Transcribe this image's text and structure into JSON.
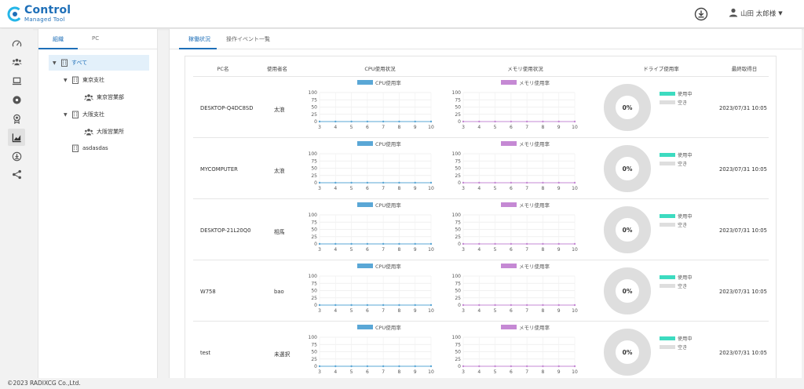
{
  "app": {
    "title": "Control",
    "subtitle": "Managed Tool",
    "user_name": "山田 太郎様"
  },
  "sidebar": {
    "icons": [
      "dashboard-icon",
      "users-icon",
      "laptop-icon",
      "disc-icon",
      "award-icon",
      "chart-icon",
      "download-circle-icon",
      "share-icon"
    ],
    "active": "chart-icon"
  },
  "tree": {
    "tabs": [
      "組織",
      "PC"
    ],
    "nodes": [
      {
        "label": "すべて",
        "icon": "building-icon"
      },
      {
        "label": "東京支社",
        "icon": "building-icon"
      },
      {
        "label": "東京営業部",
        "icon": "users-icon"
      },
      {
        "label": "大阪支社",
        "icon": "building-icon"
      },
      {
        "label": "大阪営業所",
        "icon": "users-icon"
      },
      {
        "label": "asdasdas",
        "icon": "building-icon"
      }
    ]
  },
  "main": {
    "tabs": [
      "稼働状況",
      "操作イベント一覧"
    ]
  },
  "table": {
    "columns": [
      "PC名",
      "使用者名",
      "CPU使用状況",
      "メモリ使用状況",
      "ドライブ使用率",
      "最終取得日"
    ],
    "cpu_legend": "CPU使用率",
    "mem_legend": "メモリ使用率",
    "drive_used_label": "使用中",
    "drive_free_label": "空き",
    "y_ticks": [
      "100",
      "75",
      "50",
      "25",
      "0"
    ],
    "x_ticks": [
      "3",
      "4",
      "5",
      "6",
      "7",
      "8",
      "9",
      "10"
    ],
    "rows": [
      {
        "pc": "DESKTOP-Q4DC8SD",
        "user": "太浪",
        "drive": "0%",
        "date": "2023/07/31 10:05"
      },
      {
        "pc": "MYCOMPUTER",
        "user": "太浪",
        "drive": "0%",
        "date": "2023/07/31 10:05"
      },
      {
        "pc": "DESKTOP-21L20Q0",
        "user": "相馬",
        "drive": "0%",
        "date": "2023/07/31 10:05"
      },
      {
        "pc": "W758",
        "user": "bao",
        "drive": "0%",
        "date": "2023/07/31 10:05"
      },
      {
        "pc": "test",
        "user": "未選択",
        "drive": "0%",
        "date": "2023/07/31 10:05"
      }
    ]
  },
  "chart_data": {
    "type": "line",
    "x": [
      3,
      4,
      5,
      6,
      7,
      8,
      9,
      10
    ],
    "ylim": [
      0,
      100
    ],
    "series": [
      {
        "name": "CPU使用率",
        "values": [
          0,
          0,
          0,
          0,
          0,
          0,
          0,
          0
        ]
      },
      {
        "name": "メモリ使用率",
        "values": [
          0,
          0,
          0,
          0,
          0,
          0,
          0,
          0
        ]
      }
    ],
    "drive": {
      "used": 0,
      "free": 100
    }
  },
  "colors": {
    "accent": "#1e6fb8",
    "cpu": "#5aa7d6",
    "memory": "#c589d4",
    "drive_used": "#3ddbc0",
    "drive_free": "#dedede"
  },
  "footer": {
    "copyright": "©2023 RADIXCG Co.,Ltd."
  }
}
